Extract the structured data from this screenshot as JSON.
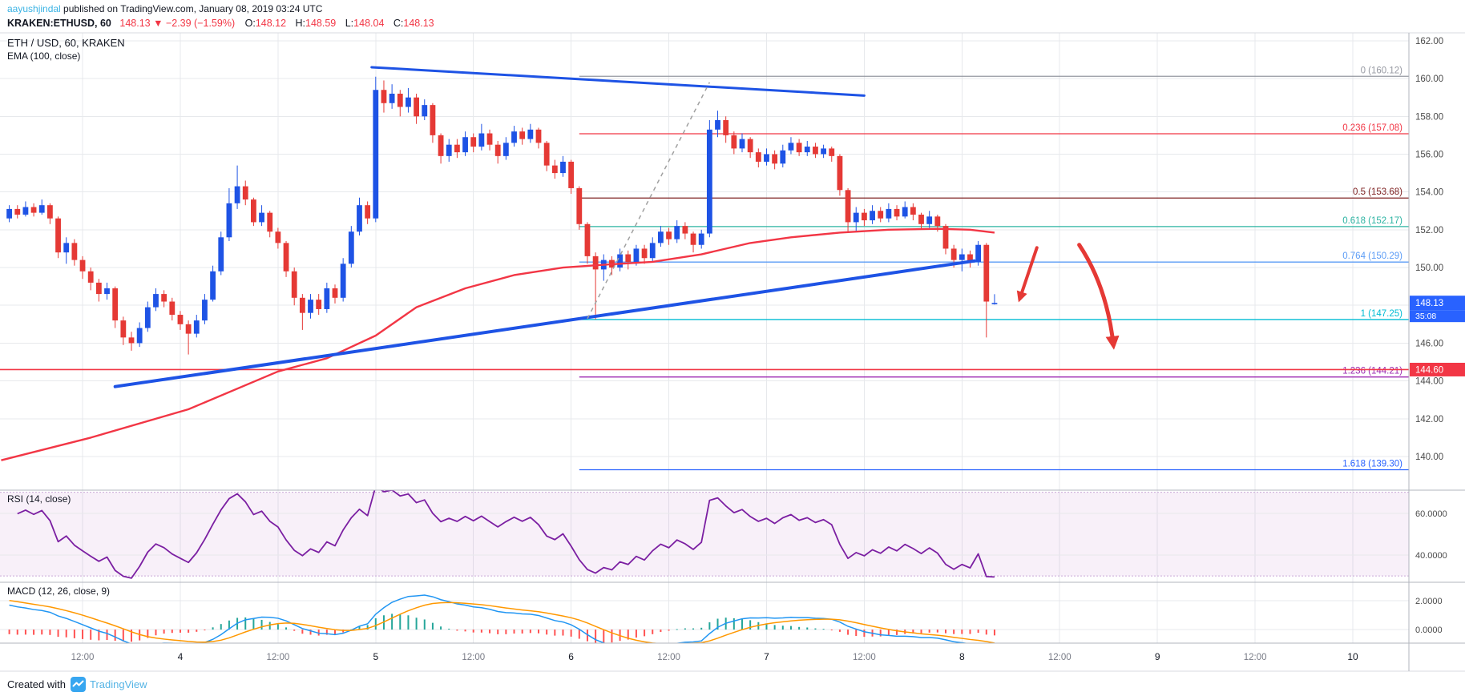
{
  "attribution": {
    "author": "aayushjindal",
    "rest": " published on TradingView.com, January 08, 2019 03:24 UTC"
  },
  "symbol_bar": {
    "symbol": "KRAKEN:ETHUSD, 60",
    "price": "148.13",
    "change": "▼ −2.39 (−1.59%)",
    "o_label": "O:",
    "o": "148.12",
    "h_label": "H:",
    "h": "148.59",
    "l_label": "L:",
    "l": "148.04",
    "c_label": "C:",
    "c": "148.13"
  },
  "main_pane": {
    "legend_line1": "ETH / USD, 60, KRAKEN",
    "legend_line2": "EMA (100, close)"
  },
  "rsi_pane": {
    "title": "RSI (14, close)"
  },
  "macd_pane": {
    "title": "MACD (12, 26, close, 9)"
  },
  "footer": {
    "created_with": "Created with",
    "brand": "TradingView"
  },
  "colors": {
    "text": "#131722",
    "link": "#3BB3E4",
    "up": "#1E53E5",
    "down": "#E53935",
    "grid": "#E7E9EC",
    "separator": "#B2B5BE",
    "light_separator": "#D8DBE0",
    "axis_text": "#4A4A4A",
    "time_minor": "#787B86",
    "time_major": "#131722",
    "last_price_bg": "#2962FF",
    "alert": "#F23645",
    "ema": "#F23645",
    "trendline": "#1E53E5",
    "dashed": "#A0A0A0",
    "arrow": "#E53935",
    "rsi_line": "#7B1FA2",
    "rsi_band_fill": "rgba(156,39,176,0.07)",
    "rsi_band_border": "#C9A8D8",
    "macd_line": "#2196F3",
    "macd_signal": "#FF9800",
    "hist_pos": "#26A69A",
    "hist_neg": "#FF5252",
    "brand_blue": "#37A6F0"
  },
  "chart_data": {
    "type": "candlestick",
    "title": "ETH / USD, 60, KRAKEN",
    "exchange": "KRAKEN",
    "symbol": "ETH/USD",
    "interval_minutes": 60,
    "price_axis": {
      "min": 138.22,
      "max": 162.42,
      "ticks": [
        162,
        160,
        158,
        156,
        154,
        152,
        150,
        148,
        146,
        144,
        142,
        140
      ]
    },
    "time_axis": [
      {
        "text": "12:00",
        "index": 9,
        "major": false
      },
      {
        "text": "4",
        "index": 21,
        "major": true
      },
      {
        "text": "12:00",
        "index": 33,
        "major": false
      },
      {
        "text": "5",
        "index": 45,
        "major": true
      },
      {
        "text": "12:00",
        "index": 57,
        "major": false
      },
      {
        "text": "6",
        "index": 69,
        "major": true
      },
      {
        "text": "12:00",
        "index": 81,
        "major": false
      },
      {
        "text": "7",
        "index": 93,
        "major": true
      },
      {
        "text": "12:00",
        "index": 105,
        "major": false
      },
      {
        "text": "8",
        "index": 117,
        "major": true
      },
      {
        "text": "12:00",
        "index": 129,
        "major": false
      },
      {
        "text": "9",
        "index": 141,
        "major": true
      },
      {
        "text": "12:00",
        "index": 153,
        "major": false
      },
      {
        "text": "10",
        "index": 165,
        "major": true
      }
    ],
    "last_price": {
      "value": 148.13,
      "label": "148.13",
      "countdown": "35:08"
    },
    "alert_line": {
      "price": 144.6,
      "label": "144.60"
    },
    "fib_levels": [
      {
        "label": "0 (160.12)",
        "price": 160.12,
        "color": "#9598A1"
      },
      {
        "label": "0.236 (157.08)",
        "price": 157.08,
        "color": "#F23645"
      },
      {
        "label": "0.5 (153.68)",
        "price": 153.68,
        "color": "#7E2121"
      },
      {
        "label": "0.618 (152.17)",
        "price": 152.17,
        "color": "#2BB3A2"
      },
      {
        "label": "0.764 (150.29)",
        "price": 150.29,
        "color": "#5B9CF6"
      },
      {
        "label": "1 (147.25)",
        "price": 147.25,
        "color": "#00BCD4"
      },
      {
        "label": "1.236 (144.21)",
        "price": 144.21,
        "color": "#9C27B0"
      },
      {
        "label": "1.618 (139.30)",
        "price": 139.3,
        "color": "#2962FF"
      }
    ],
    "fib_start_index": 70,
    "ema_points": [
      [
        -1,
        139.8
      ],
      [
        10,
        141.0
      ],
      [
        22,
        142.5
      ],
      [
        33,
        144.5
      ],
      [
        39,
        145.2
      ],
      [
        45,
        146.4
      ],
      [
        50,
        147.9
      ],
      [
        56,
        148.9
      ],
      [
        62,
        149.6
      ],
      [
        68,
        150.0
      ],
      [
        73,
        150.15
      ],
      [
        79,
        150.3
      ],
      [
        85,
        150.7
      ],
      [
        91,
        151.3
      ],
      [
        96,
        151.6
      ],
      [
        102,
        151.85
      ],
      [
        108,
        152.0
      ],
      [
        114,
        152.05
      ],
      [
        118,
        152.0
      ],
      [
        121,
        151.85
      ]
    ],
    "trendlines": [
      {
        "from": [
          44.5,
          160.6
        ],
        "to": [
          105,
          159.1
        ],
        "width": 3
      },
      {
        "from": [
          13,
          143.7
        ],
        "to": [
          118.5,
          150.35
        ],
        "width": 4
      }
    ],
    "dashed_line": {
      "from": [
        71,
        147.3
      ],
      "to": [
        86,
        159.8
      ]
    },
    "arrows": [
      {
        "path": [
          [
            126.2,
            151.05
          ],
          [
            124.1,
            148.35
          ]
        ],
        "width": 4
      },
      {
        "path": [
          [
            131.4,
            151.2
          ],
          [
            134.8,
            149.0
          ],
          [
            135.6,
            145.9
          ]
        ],
        "width": 5
      }
    ],
    "indicators": {
      "rsi": {
        "period": 14,
        "range": [
          27,
          71
        ],
        "band": [
          30,
          70
        ],
        "ticks": [
          {
            "value": 60,
            "label": "60.0000"
          },
          {
            "value": 40,
            "label": "40.0000"
          }
        ],
        "seed_gain": 0.45,
        "seed_loss": 0.28
      },
      "macd": {
        "fast": 12,
        "slow": 26,
        "signal": 9,
        "range": [
          -0.94,
          3.28
        ],
        "ticks": [
          {
            "value": 2,
            "label": "2.0000"
          },
          {
            "value": 0,
            "label": "0.0000"
          }
        ]
      }
    },
    "candles": [
      [
        152.6,
        153.3,
        152.4,
        153.1
      ],
      [
        153.1,
        153.3,
        152.6,
        152.8
      ],
      [
        152.8,
        153.5,
        152.7,
        153.2
      ],
      [
        153.2,
        153.4,
        152.7,
        152.9
      ],
      [
        152.9,
        153.6,
        152.8,
        153.3
      ],
      [
        153.3,
        153.4,
        152.3,
        152.6
      ],
      [
        152.6,
        152.7,
        150.5,
        150.8
      ],
      [
        150.8,
        151.6,
        150.2,
        151.3
      ],
      [
        151.3,
        151.5,
        150.1,
        150.4
      ],
      [
        150.4,
        150.6,
        149.4,
        149.8
      ],
      [
        149.8,
        150.0,
        148.8,
        149.2
      ],
      [
        149.2,
        149.4,
        148.2,
        148.6
      ],
      [
        148.6,
        149.2,
        148.3,
        148.9
      ],
      [
        148.9,
        149.0,
        146.8,
        147.2
      ],
      [
        147.2,
        147.4,
        145.9,
        146.3
      ],
      [
        146.3,
        146.6,
        145.6,
        146.0
      ],
      [
        146.0,
        147.1,
        145.8,
        146.8
      ],
      [
        146.8,
        148.2,
        146.6,
        147.9
      ],
      [
        147.9,
        148.9,
        147.7,
        148.6
      ],
      [
        148.6,
        148.8,
        147.9,
        148.2
      ],
      [
        148.2,
        148.4,
        147.2,
        147.5
      ],
      [
        147.5,
        147.7,
        146.7,
        147.0
      ],
      [
        147.0,
        147.2,
        145.4,
        146.5
      ],
      [
        146.5,
        147.5,
        146.3,
        147.2
      ],
      [
        147.2,
        148.6,
        147.0,
        148.3
      ],
      [
        148.3,
        150.1,
        148.2,
        149.8
      ],
      [
        149.8,
        151.9,
        149.6,
        151.6
      ],
      [
        151.6,
        154.2,
        151.4,
        153.4
      ],
      [
        153.4,
        155.4,
        153.1,
        154.3
      ],
      [
        154.3,
        154.6,
        153.3,
        153.6
      ],
      [
        153.6,
        153.7,
        152.2,
        152.4
      ],
      [
        152.4,
        153.3,
        152.2,
        152.9
      ],
      [
        152.9,
        153.0,
        151.6,
        151.9
      ],
      [
        151.9,
        152.1,
        151.0,
        151.3
      ],
      [
        151.3,
        151.4,
        149.5,
        149.8
      ],
      [
        149.8,
        150.0,
        148.0,
        148.4
      ],
      [
        148.4,
        148.6,
        146.7,
        147.6
      ],
      [
        147.6,
        148.6,
        147.3,
        148.3
      ],
      [
        148.3,
        148.6,
        147.5,
        147.8
      ],
      [
        147.8,
        149.2,
        147.6,
        148.9
      ],
      [
        148.9,
        149.1,
        148.1,
        148.4
      ],
      [
        148.4,
        150.5,
        148.2,
        150.2
      ],
      [
        150.2,
        152.2,
        150.0,
        151.9
      ],
      [
        151.9,
        153.7,
        151.7,
        153.3
      ],
      [
        153.3,
        153.5,
        152.3,
        152.6
      ],
      [
        152.6,
        160.1,
        152.4,
        159.4
      ],
      [
        159.4,
        159.9,
        158.2,
        158.7
      ],
      [
        158.7,
        159.7,
        158.4,
        159.2
      ],
      [
        159.2,
        159.4,
        158.0,
        158.5
      ],
      [
        158.5,
        159.5,
        158.2,
        159.0
      ],
      [
        159.0,
        159.2,
        157.6,
        158.0
      ],
      [
        158.0,
        158.9,
        157.8,
        158.6
      ],
      [
        158.6,
        158.7,
        156.6,
        157.0
      ],
      [
        157.0,
        157.1,
        155.5,
        155.9
      ],
      [
        155.9,
        156.8,
        155.6,
        156.5
      ],
      [
        156.5,
        156.8,
        155.8,
        156.1
      ],
      [
        156.1,
        157.2,
        155.9,
        156.9
      ],
      [
        156.9,
        157.1,
        156.1,
        156.4
      ],
      [
        156.4,
        157.6,
        156.2,
        157.1
      ],
      [
        157.1,
        157.3,
        156.2,
        156.5
      ],
      [
        156.5,
        156.7,
        155.5,
        155.9
      ],
      [
        155.9,
        156.9,
        155.7,
        156.6
      ],
      [
        156.6,
        157.5,
        156.4,
        157.2
      ],
      [
        157.2,
        157.4,
        156.5,
        156.8
      ],
      [
        156.8,
        157.6,
        156.6,
        157.3
      ],
      [
        157.3,
        157.4,
        156.3,
        156.6
      ],
      [
        156.6,
        156.7,
        155.1,
        155.4
      ],
      [
        155.4,
        155.7,
        154.7,
        155.0
      ],
      [
        155.0,
        155.9,
        154.8,
        155.6
      ],
      [
        155.6,
        155.7,
        153.9,
        154.2
      ],
      [
        154.2,
        154.3,
        152.0,
        152.3
      ],
      [
        152.3,
        152.4,
        150.2,
        150.6
      ],
      [
        150.6,
        150.8,
        147.25,
        149.9
      ],
      [
        149.9,
        150.7,
        149.3,
        150.4
      ],
      [
        150.4,
        150.6,
        149.6,
        150.0
      ],
      [
        150.0,
        151.0,
        149.8,
        150.7
      ],
      [
        150.7,
        150.9,
        149.9,
        150.3
      ],
      [
        150.3,
        151.2,
        150.1,
        151.0
      ],
      [
        151.0,
        151.2,
        150.2,
        150.5
      ],
      [
        150.5,
        151.6,
        150.3,
        151.3
      ],
      [
        151.3,
        152.2,
        151.1,
        151.9
      ],
      [
        151.9,
        152.1,
        151.2,
        151.5
      ],
      [
        151.5,
        152.5,
        151.3,
        152.2
      ],
      [
        152.2,
        152.4,
        151.5,
        151.8
      ],
      [
        151.8,
        151.9,
        150.8,
        151.2
      ],
      [
        151.2,
        152.0,
        151.0,
        151.8
      ],
      [
        151.8,
        157.8,
        151.6,
        157.3
      ],
      [
        157.3,
        158.3,
        156.9,
        157.8
      ],
      [
        157.8,
        158.0,
        156.6,
        157.0
      ],
      [
        157.0,
        157.2,
        156.0,
        156.3
      ],
      [
        156.3,
        157.1,
        156.1,
        156.8
      ],
      [
        156.8,
        156.9,
        155.8,
        156.1
      ],
      [
        156.1,
        156.3,
        155.3,
        155.6
      ],
      [
        155.6,
        156.3,
        155.4,
        156.0
      ],
      [
        156.0,
        156.2,
        155.2,
        155.5
      ],
      [
        155.5,
        156.5,
        155.3,
        156.2
      ],
      [
        156.2,
        156.9,
        156.0,
        156.6
      ],
      [
        156.6,
        156.8,
        155.9,
        156.1
      ],
      [
        156.1,
        156.7,
        155.9,
        156.4
      ],
      [
        156.4,
        156.6,
        155.8,
        156.0
      ],
      [
        156.0,
        156.5,
        155.8,
        156.3
      ],
      [
        156.3,
        156.4,
        155.6,
        155.9
      ],
      [
        155.9,
        156.0,
        153.8,
        154.1
      ],
      [
        154.1,
        154.2,
        151.9,
        152.4
      ],
      [
        152.4,
        153.2,
        151.9,
        152.9
      ],
      [
        152.9,
        153.1,
        152.2,
        152.5
      ],
      [
        152.5,
        153.3,
        152.3,
        153.0
      ],
      [
        153.0,
        153.2,
        152.4,
        152.6
      ],
      [
        152.6,
        153.4,
        152.4,
        153.1
      ],
      [
        153.1,
        153.3,
        152.5,
        152.7
      ],
      [
        152.7,
        153.5,
        152.6,
        153.2
      ],
      [
        153.2,
        153.4,
        152.5,
        152.8
      ],
      [
        152.8,
        152.9,
        152.0,
        152.3
      ],
      [
        152.3,
        153.0,
        152.1,
        152.7
      ],
      [
        152.7,
        152.8,
        151.9,
        152.2
      ],
      [
        152.2,
        152.3,
        150.7,
        151.0
      ],
      [
        151.0,
        151.2,
        150.0,
        150.4
      ],
      [
        150.4,
        151.0,
        149.8,
        150.7
      ],
      [
        150.7,
        150.9,
        150.0,
        150.3
      ],
      [
        150.3,
        151.4,
        150.1,
        151.2
      ],
      [
        151.2,
        151.3,
        146.3,
        148.2
      ],
      [
        148.12,
        148.59,
        148.04,
        148.13
      ]
    ]
  }
}
